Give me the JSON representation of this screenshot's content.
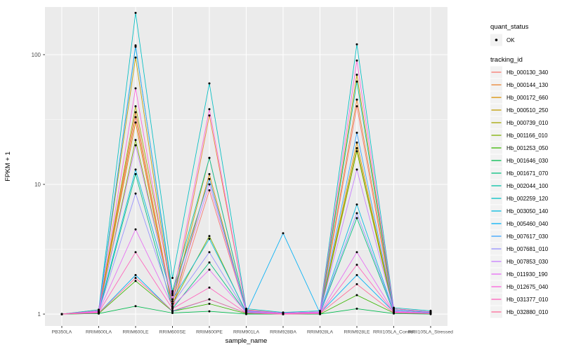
{
  "figure": {
    "background": "#FFFFFF",
    "panel_background": "#EBEBEB",
    "grid_color": "#FFFFFF",
    "tick_color": "#333333",
    "tick_label_color": "#4D4D4D",
    "axis_title_color": "#000000",
    "point_color": "#000000",
    "legend_key_fill": "#F2F2F2"
  },
  "chart_data": {
    "type": "line",
    "title": "",
    "xlabel": "sample_name",
    "ylabel": "FPKM + 1",
    "y_scale": "log10",
    "ylim": [
      0.81,
      233
    ],
    "yticks": [
      1,
      10,
      100
    ],
    "ytick_labels": [
      "1",
      "10",
      "100"
    ],
    "y_minor_ticks": [
      3.162,
      31.62
    ],
    "grid": true,
    "legend_position": "right",
    "categories": [
      "PB350LA",
      "RRIM600LA",
      "RRIM600LE",
      "RRIM600SE",
      "RRIM600PE",
      "RRIM901LA",
      "RRIM928BA",
      "RRIM928LA",
      "RRIM928LE",
      "RRII105LA_Control",
      "RRII105LA_Stressed"
    ],
    "series": [
      {
        "name": "Hb_000130_340",
        "color": "#F8766D",
        "values": [
          1.0,
          1.05,
          33,
          1.1,
          9.0,
          1.05,
          1.0,
          1.02,
          40,
          1.05,
          1.02
        ]
      },
      {
        "name": "Hb_000144_130",
        "color": "#EA8331",
        "values": [
          1.0,
          1.06,
          36,
          1.15,
          34,
          1.08,
          1.02,
          1.04,
          45,
          1.1,
          1.04
        ]
      },
      {
        "name": "Hb_000172_660",
        "color": "#D89000",
        "values": [
          1.0,
          1.04,
          30,
          1.12,
          12,
          1.04,
          1.01,
          1.02,
          21,
          1.06,
          1.02
        ]
      },
      {
        "name": "Hb_000510_250",
        "color": "#C09B00",
        "values": [
          1.0,
          1.08,
          95,
          1.25,
          16,
          1.06,
          1.02,
          1.04,
          70,
          1.1,
          1.04
        ]
      },
      {
        "name": "Hb_000739_010",
        "color": "#A3A500",
        "values": [
          1.0,
          1.05,
          40,
          1.45,
          11,
          1.05,
          1.01,
          1.02,
          19,
          1.05,
          1.02
        ]
      },
      {
        "name": "Hb_001166_010",
        "color": "#7CAE00",
        "values": [
          1.0,
          1.03,
          22,
          1.2,
          4.0,
          1.02,
          1.0,
          1.01,
          18,
          1.04,
          1.01
        ]
      },
      {
        "name": "Hb_001253_050",
        "color": "#39B600",
        "values": [
          1.0,
          1.01,
          1.8,
          1.05,
          1.2,
          1.01,
          1.0,
          1.0,
          1.4,
          1.02,
          1.01
        ]
      },
      {
        "name": "Hb_001646_030",
        "color": "#00BB4E",
        "values": [
          1.0,
          1.01,
          1.15,
          1.02,
          1.05,
          1.0,
          1.0,
          1.0,
          1.1,
          1.01,
          1.0
        ]
      },
      {
        "name": "Hb_001671_070",
        "color": "#00BF7D",
        "values": [
          1.0,
          1.02,
          12,
          1.1,
          2.5,
          1.02,
          1.0,
          1.01,
          5.5,
          1.03,
          1.01
        ]
      },
      {
        "name": "Hb_002044_100",
        "color": "#00C1A3",
        "values": [
          1.0,
          1.06,
          115,
          1.5,
          16,
          1.06,
          1.02,
          1.04,
          62,
          1.08,
          1.03
        ]
      },
      {
        "name": "Hb_002259_120",
        "color": "#00BFC4",
        "values": [
          1.0,
          1.08,
          210,
          1.9,
          60,
          1.1,
          1.03,
          1.06,
          120,
          1.12,
          1.06
        ]
      },
      {
        "name": "Hb_003050_140",
        "color": "#00BAE0",
        "values": [
          1.0,
          1.05,
          13,
          1.3,
          3.8,
          1.04,
          1.01,
          1.03,
          7.0,
          1.05,
          1.02
        ]
      },
      {
        "name": "Hb_005460_040",
        "color": "#00B0F6",
        "values": [
          1.0,
          1.02,
          2.0,
          1.05,
          1.3,
          1.02,
          4.2,
          1.02,
          2.0,
          1.04,
          1.02
        ]
      },
      {
        "name": "Hb_007617_030",
        "color": "#35A2FF",
        "values": [
          1.0,
          1.06,
          118,
          1.4,
          11,
          1.06,
          1.02,
          1.04,
          25,
          1.08,
          1.03
        ]
      },
      {
        "name": "Hb_007681_010",
        "color": "#9590FF",
        "values": [
          1.0,
          1.04,
          8.5,
          1.2,
          3.0,
          1.03,
          1.01,
          1.02,
          6.0,
          1.05,
          1.02
        ]
      },
      {
        "name": "Hb_007853_030",
        "color": "#C77CFF",
        "values": [
          1.0,
          1.05,
          20,
          1.25,
          10,
          1.05,
          1.01,
          1.03,
          13,
          1.06,
          1.02
        ]
      },
      {
        "name": "Hb_011930_190",
        "color": "#E76BF3",
        "values": [
          1.0,
          1.04,
          4.5,
          1.15,
          2.2,
          1.03,
          1.01,
          1.02,
          3.0,
          1.04,
          1.02
        ]
      },
      {
        "name": "Hb_012675_040",
        "color": "#FA62DB",
        "values": [
          1.0,
          1.06,
          55,
          1.3,
          38,
          1.07,
          1.02,
          1.04,
          90,
          1.1,
          1.04
        ]
      },
      {
        "name": "Hb_031377_010",
        "color": "#FF62BC",
        "values": [
          1.0,
          1.03,
          3.0,
          1.1,
          1.6,
          1.02,
          1.0,
          1.01,
          2.4,
          1.03,
          1.01
        ]
      },
      {
        "name": "Hb_032880_010",
        "color": "#FF6A98",
        "values": [
          1.0,
          1.02,
          1.9,
          1.06,
          1.3,
          1.02,
          1.0,
          1.01,
          1.7,
          1.02,
          1.01
        ]
      }
    ],
    "legend": {
      "quant_status_title": "quant_status",
      "quant_status_items": [
        {
          "label": "OK",
          "marker": "point",
          "color": "#000000"
        }
      ],
      "tracking_id_title": "tracking_id"
    }
  }
}
